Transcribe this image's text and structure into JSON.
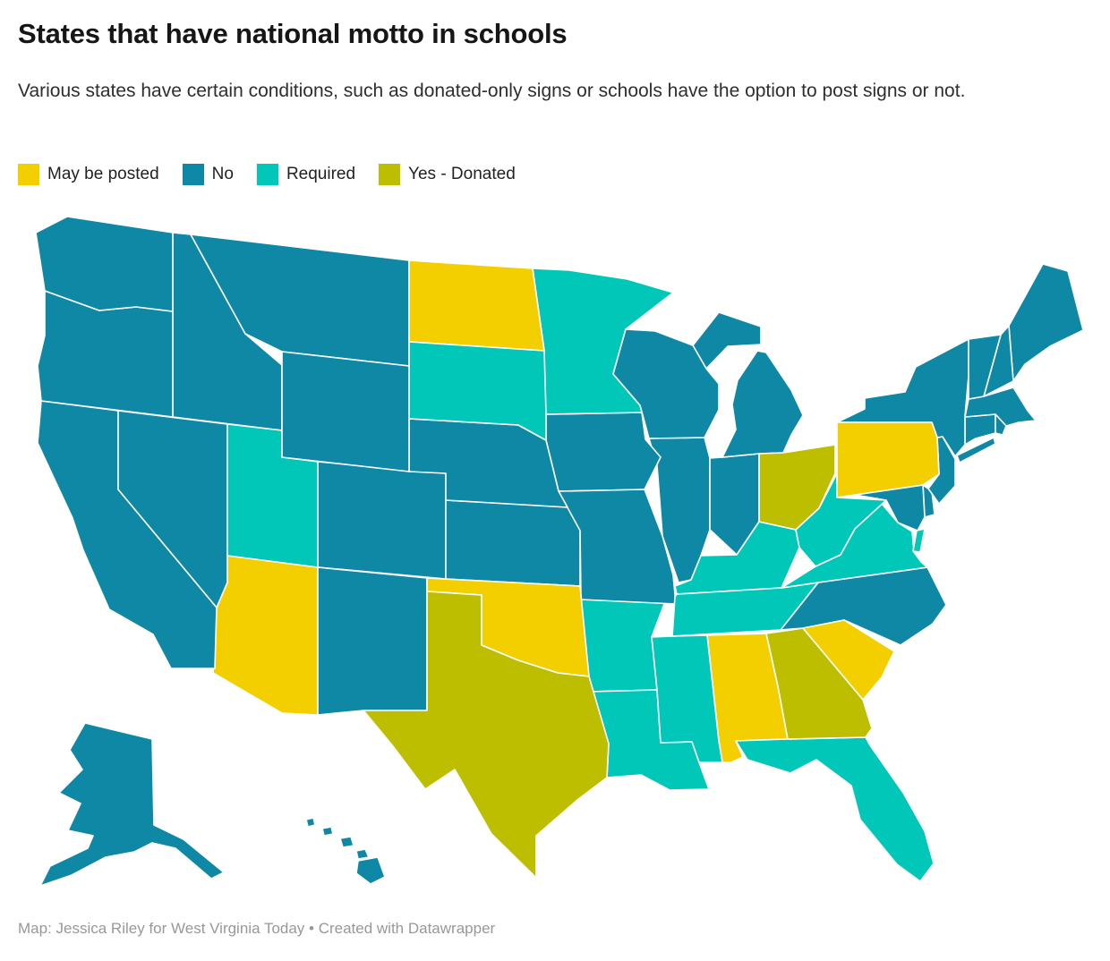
{
  "header": {
    "title": "States that have national motto in schools",
    "subtitle": "Various states have certain conditions, such as donated-only signs or schools have the option to post signs or not."
  },
  "legend": {
    "items": [
      {
        "label": "May be posted",
        "color": "#F3CF00"
      },
      {
        "label": "No",
        "color": "#0E88A4"
      },
      {
        "label": "Required",
        "color": "#00C7B7"
      },
      {
        "label": "Yes - Donated",
        "color": "#BDBE00"
      }
    ]
  },
  "footer": {
    "text": "Map: Jessica Riley for West Virginia Today • Created with Datawrapper"
  },
  "chart_data": {
    "type": "choropleth-map",
    "title": "States that have national motto in schools",
    "region": "United States",
    "categories": [
      "May be posted",
      "No",
      "Required",
      "Yes - Donated"
    ],
    "category_colors": {
      "May be posted": "#F3CF00",
      "No": "#0E88A4",
      "Required": "#00C7B7",
      "Yes - Donated": "#BDBE00"
    },
    "states": [
      {
        "id": "AL",
        "name": "Alabama",
        "value": "May be posted"
      },
      {
        "id": "AK",
        "name": "Alaska",
        "value": "No"
      },
      {
        "id": "AZ",
        "name": "Arizona",
        "value": "May be posted"
      },
      {
        "id": "AR",
        "name": "Arkansas",
        "value": "Required"
      },
      {
        "id": "CA",
        "name": "California",
        "value": "No"
      },
      {
        "id": "CO",
        "name": "Colorado",
        "value": "No"
      },
      {
        "id": "CT",
        "name": "Connecticut",
        "value": "No"
      },
      {
        "id": "DE",
        "name": "Delaware",
        "value": "No"
      },
      {
        "id": "FL",
        "name": "Florida",
        "value": "Required"
      },
      {
        "id": "GA",
        "name": "Georgia",
        "value": "Yes - Donated"
      },
      {
        "id": "HI",
        "name": "Hawaii",
        "value": "No"
      },
      {
        "id": "ID",
        "name": "Idaho",
        "value": "No"
      },
      {
        "id": "IL",
        "name": "Illinois",
        "value": "No"
      },
      {
        "id": "IN",
        "name": "Indiana",
        "value": "No"
      },
      {
        "id": "IA",
        "name": "Iowa",
        "value": "No"
      },
      {
        "id": "KS",
        "name": "Kansas",
        "value": "No"
      },
      {
        "id": "KY",
        "name": "Kentucky",
        "value": "Required"
      },
      {
        "id": "LA",
        "name": "Louisiana",
        "value": "Required"
      },
      {
        "id": "ME",
        "name": "Maine",
        "value": "No"
      },
      {
        "id": "MD",
        "name": "Maryland",
        "value": "No"
      },
      {
        "id": "MA",
        "name": "Massachusetts",
        "value": "No"
      },
      {
        "id": "MI",
        "name": "Michigan",
        "value": "No"
      },
      {
        "id": "MN",
        "name": "Minnesota",
        "value": "Required"
      },
      {
        "id": "MS",
        "name": "Mississippi",
        "value": "Required"
      },
      {
        "id": "MO",
        "name": "Missouri",
        "value": "No"
      },
      {
        "id": "MT",
        "name": "Montana",
        "value": "No"
      },
      {
        "id": "NE",
        "name": "Nebraska",
        "value": "No"
      },
      {
        "id": "NV",
        "name": "Nevada",
        "value": "No"
      },
      {
        "id": "NH",
        "name": "New Hampshire",
        "value": "No"
      },
      {
        "id": "NJ",
        "name": "New Jersey",
        "value": "No"
      },
      {
        "id": "NM",
        "name": "New Mexico",
        "value": "No"
      },
      {
        "id": "NY",
        "name": "New York",
        "value": "No"
      },
      {
        "id": "NC",
        "name": "North Carolina",
        "value": "No"
      },
      {
        "id": "ND",
        "name": "North Dakota",
        "value": "May be posted"
      },
      {
        "id": "OH",
        "name": "Ohio",
        "value": "Yes - Donated"
      },
      {
        "id": "OK",
        "name": "Oklahoma",
        "value": "May be posted"
      },
      {
        "id": "OR",
        "name": "Oregon",
        "value": "No"
      },
      {
        "id": "PA",
        "name": "Pennsylvania",
        "value": "May be posted"
      },
      {
        "id": "RI",
        "name": "Rhode Island",
        "value": "No"
      },
      {
        "id": "SC",
        "name": "South Carolina",
        "value": "May be posted"
      },
      {
        "id": "SD",
        "name": "South Dakota",
        "value": "Required"
      },
      {
        "id": "TN",
        "name": "Tennessee",
        "value": "Required"
      },
      {
        "id": "TX",
        "name": "Texas",
        "value": "Yes - Donated"
      },
      {
        "id": "UT",
        "name": "Utah",
        "value": "Required"
      },
      {
        "id": "VT",
        "name": "Vermont",
        "value": "No"
      },
      {
        "id": "VA",
        "name": "Virginia",
        "value": "Required"
      },
      {
        "id": "WA",
        "name": "Washington",
        "value": "No"
      },
      {
        "id": "WV",
        "name": "West Virginia",
        "value": "Required"
      },
      {
        "id": "WI",
        "name": "Wisconsin",
        "value": "No"
      },
      {
        "id": "WY",
        "name": "Wyoming",
        "value": "No"
      }
    ]
  }
}
